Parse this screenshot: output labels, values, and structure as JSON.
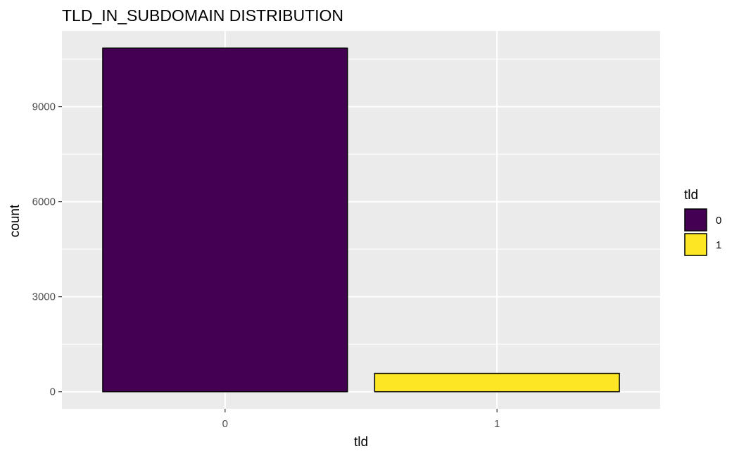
{
  "chart_data": {
    "type": "bar",
    "title": "TLD_IN_SUBDOMAIN DISTRIBUTION",
    "xlabel": "tld",
    "ylabel": "count",
    "categories": [
      "0",
      "1"
    ],
    "values": [
      10850,
      580
    ],
    "colors": [
      "#440154",
      "#FDE725"
    ],
    "bar_outline": "#000000",
    "ylim": [
      -540,
      11390
    ],
    "yticks": [
      0,
      3000,
      6000,
      9000
    ],
    "ytick_labels": [
      "0",
      "3000",
      "6000",
      "9000"
    ],
    "grid": true,
    "panel_background": "#EBEBEB",
    "legend": {
      "title": "tld",
      "position": "right",
      "entries": [
        "0",
        "1"
      ]
    }
  }
}
